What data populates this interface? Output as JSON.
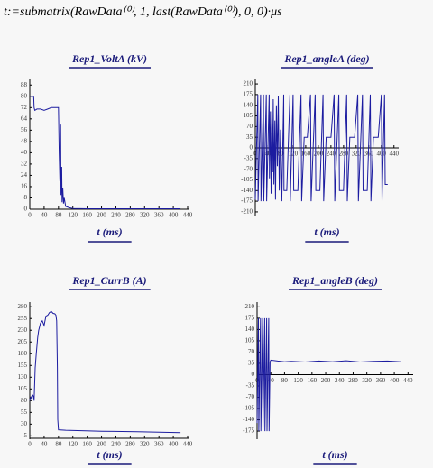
{
  "formula": "t:=submatrix(RawData⁽⁰⁾, 1, last(RawData⁽⁰⁾), 0, 0)·μs",
  "chart_data": [
    {
      "type": "line",
      "title": "Rep1_VoltA (kV)",
      "x_label": "t (ms)",
      "x": [
        0,
        10,
        11,
        12,
        14,
        20,
        30,
        40,
        50,
        60,
        70,
        80,
        82,
        84,
        86,
        87,
        89,
        90,
        92,
        94,
        96,
        100,
        110,
        120,
        160,
        420
      ],
      "series": [
        {
          "name": "Rep1_VoltA",
          "color": "#1c1ca0",
          "values": [
            80,
            80,
            79,
            72,
            70,
            71,
            71,
            70,
            71,
            72,
            72,
            72,
            40,
            20,
            60,
            10,
            30,
            5,
            15,
            4,
            8,
            2,
            1,
            0.5,
            0.3,
            0.3
          ]
        }
      ],
      "xlim": [
        0,
        445
      ],
      "xticks": [
        0,
        40,
        80,
        120,
        160,
        200,
        240,
        280,
        320,
        360,
        400,
        440
      ],
      "ylim": [
        0,
        92
      ],
      "yticks": [
        0,
        8,
        16,
        24,
        32,
        40,
        48,
        56,
        64,
        72,
        80,
        88
      ]
    },
    {
      "type": "line",
      "title": "Rep1_angleA (deg)",
      "x_label": "t (ms)",
      "x": [
        0,
        8,
        9,
        17,
        18,
        26,
        27,
        35,
        36,
        44,
        45,
        48,
        50,
        53,
        55,
        57,
        59,
        62,
        64,
        67,
        70,
        73,
        76,
        80,
        84,
        90,
        91,
        100,
        110,
        111,
        120,
        122,
        135,
        145,
        147,
        155,
        165,
        175,
        177,
        190,
        192,
        205,
        215,
        217,
        225,
        240,
        250,
        252,
        265,
        267,
        280,
        290,
        292,
        300,
        315,
        325,
        327,
        340,
        342,
        355,
        365,
        367,
        375,
        390,
        400,
        402,
        410,
        412,
        420
      ],
      "series": [
        {
          "name": "Rep1_angleA",
          "color": "#1c1ca0",
          "values": [
            -170,
            175,
            -175,
            175,
            -175,
            175,
            -175,
            175,
            -175,
            175,
            -100,
            120,
            -150,
            100,
            -80,
            160,
            -120,
            90,
            -170,
            140,
            -60,
            170,
            -140,
            60,
            -175,
            175,
            -140,
            -140,
            175,
            -175,
            175,
            -140,
            -140,
            175,
            -175,
            35,
            35,
            175,
            -175,
            175,
            -140,
            -140,
            175,
            -175,
            35,
            35,
            175,
            -175,
            175,
            -140,
            -140,
            175,
            -175,
            35,
            35,
            175,
            -175,
            175,
            -140,
            -140,
            175,
            -175,
            35,
            35,
            175,
            -175,
            175,
            -120,
            -120
          ]
        }
      ],
      "xlim": [
        0,
        455
      ],
      "xticks": [
        0,
        40,
        80,
        120,
        160,
        200,
        240,
        280,
        320,
        360,
        400,
        440
      ],
      "ylim": [
        -225,
        225
      ],
      "yticks": [
        -210,
        -175,
        -140,
        -105,
        -70,
        -35,
        0,
        35,
        70,
        105,
        140,
        175,
        210
      ]
    },
    {
      "type": "line",
      "title": "Rep1_CurrB (A)",
      "x_label": "t (ms)",
      "x": [
        0,
        3,
        5,
        8,
        10,
        12,
        15,
        18,
        22,
        25,
        30,
        35,
        40,
        45,
        50,
        55,
        60,
        65,
        70,
        73,
        75,
        77,
        78,
        80,
        100,
        200,
        300,
        420
      ],
      "series": [
        {
          "name": "Rep1_CurrB",
          "color": "#1c1ca0",
          "values": [
            80,
            88,
            85,
            92,
            90,
            80,
            150,
            180,
            215,
            230,
            245,
            250,
            240,
            260,
            262,
            268,
            270,
            266,
            265,
            262,
            250,
            150,
            40,
            18,
            17,
            15,
            14,
            12
          ]
        }
      ],
      "xlim": [
        0,
        445
      ],
      "xticks": [
        0,
        40,
        80,
        120,
        160,
        200,
        240,
        280,
        320,
        360,
        400,
        440
      ],
      "ylim": [
        -2,
        290
      ],
      "yticks": [
        5,
        30,
        55,
        80,
        105,
        130,
        155,
        180,
        205,
        230,
        255,
        280
      ]
    },
    {
      "type": "line",
      "title": "Rep1_angleB (deg)",
      "x_label": "t (ms)",
      "x": [
        0,
        4,
        5,
        10,
        11,
        16,
        17,
        22,
        23,
        28,
        29,
        34,
        35,
        38,
        40,
        60,
        80,
        100,
        140,
        180,
        220,
        260,
        300,
        340,
        380,
        420
      ],
      "series": [
        {
          "name": "Rep1_angleB",
          "color": "#1c1ca0",
          "values": [
            -150,
            175,
            -175,
            175,
            -175,
            175,
            -175,
            175,
            -175,
            175,
            -175,
            175,
            -175,
            40,
            45,
            42,
            40,
            41,
            39,
            42,
            40,
            43,
            39,
            41,
            42,
            40
          ]
        }
      ],
      "xlim": [
        0,
        455
      ],
      "xticks": [
        0,
        40,
        80,
        120,
        160,
        200,
        240,
        280,
        320,
        360,
        400,
        440
      ],
      "ylim": [
        -200,
        225
      ],
      "yticks": [
        -175,
        -140,
        -105,
        -70,
        -35,
        0,
        35,
        70,
        105,
        140,
        175,
        210
      ]
    }
  ]
}
